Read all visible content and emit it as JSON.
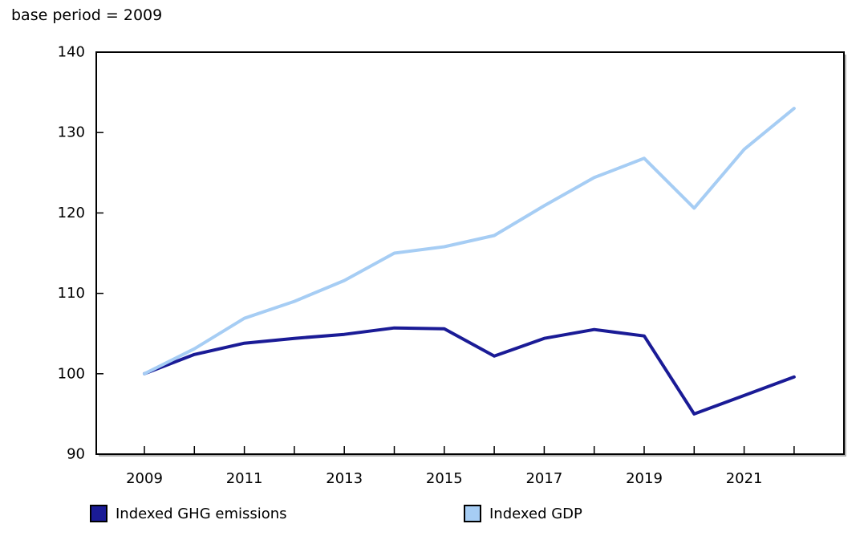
{
  "chart_data": {
    "type": "line",
    "title": "base period = 2009",
    "xlabel": "",
    "ylabel": "",
    "x": [
      2009,
      2010,
      2011,
      2012,
      2013,
      2014,
      2015,
      2016,
      2017,
      2018,
      2019,
      2020,
      2021,
      2022
    ],
    "x_tick_label_years": [
      2009,
      2011,
      2013,
      2015,
      2017,
      2019,
      2021
    ],
    "y_ticks": [
      90,
      100,
      110,
      120,
      130,
      140
    ],
    "ylim": [
      90,
      140
    ],
    "grid": false,
    "legend_position": "bottom",
    "series": [
      {
        "name": "Indexed GHG emissions",
        "color": "#1a1b96",
        "values": [
          100,
          102.4,
          103.8,
          104.4,
          104.9,
          105.7,
          105.6,
          102.2,
          104.4,
          105.5,
          104.7,
          95.0,
          97.3,
          99.6
        ]
      },
      {
        "name": "Indexed GDP",
        "color": "#a6cdf4",
        "values": [
          100,
          103.1,
          106.9,
          109.0,
          111.6,
          115.0,
          115.8,
          117.2,
          120.9,
          124.4,
          126.8,
          120.6,
          127.9,
          133.0
        ]
      }
    ]
  }
}
